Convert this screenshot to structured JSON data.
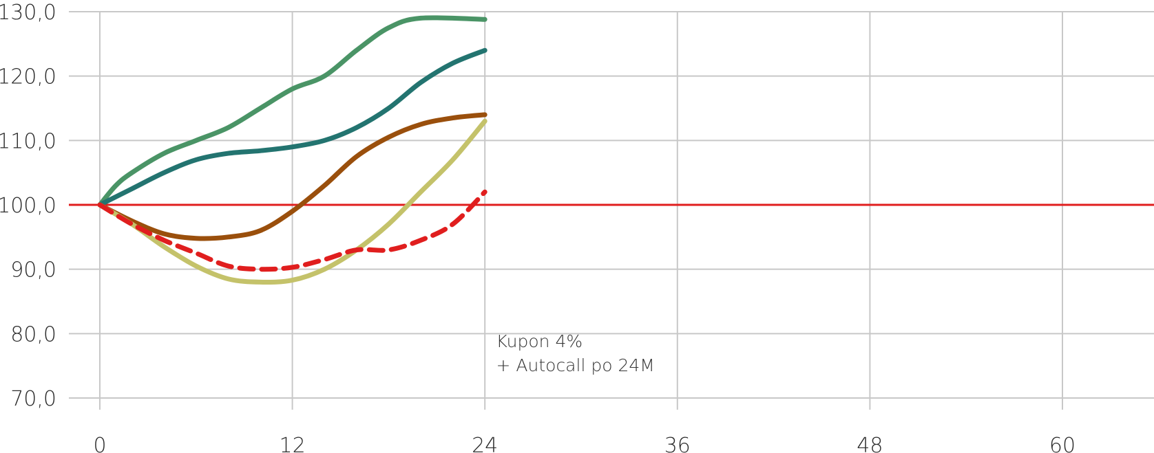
{
  "chart_data": {
    "type": "line",
    "title": "",
    "xlabel": "",
    "ylabel": "",
    "xlim": [
      0,
      66
    ],
    "ylim": [
      70,
      130
    ],
    "x_ticks": [
      0,
      12,
      24,
      36,
      48,
      60
    ],
    "x_tick_labels": [
      "0",
      "12",
      "24",
      "36",
      "48",
      "60"
    ],
    "y_ticks": [
      70,
      80,
      90,
      100,
      110,
      120,
      130
    ],
    "y_tick_labels": [
      "70,0",
      "80,0",
      "90,0",
      "100,0",
      "110,0",
      "120,0",
      "130,0"
    ],
    "grid": true,
    "legend": "none",
    "reference_line": {
      "y": 100,
      "color": "#e01e1e"
    },
    "annotation": {
      "x": 24.7,
      "y": 78,
      "lines": [
        "Kupon 4%",
        "+ Autocall po 24M"
      ]
    },
    "series": [
      {
        "color": "#4a9466",
        "dash": false,
        "x": [
          0,
          1,
          2,
          4,
          6,
          8,
          10,
          12,
          14,
          16,
          18,
          20,
          24
        ],
        "y": [
          100,
          103,
          105,
          108,
          110,
          112,
          115,
          118,
          120,
          124,
          127.5,
          129,
          128.8
        ]
      },
      {
        "color": "#237470",
        "dash": false,
        "x": [
          0,
          2,
          4,
          6,
          8,
          10,
          12,
          14,
          16,
          18,
          20,
          22,
          24
        ],
        "y": [
          100,
          102.5,
          105,
          107,
          108,
          108.4,
          109,
          110,
          112,
          115,
          119,
          122,
          124
        ]
      },
      {
        "color": "#9a4f0c",
        "dash": false,
        "x": [
          0,
          2,
          4,
          6,
          8,
          10,
          12,
          14,
          16,
          18,
          20,
          22,
          24
        ],
        "y": [
          100,
          97.5,
          95.5,
          94.8,
          95,
          96,
          99,
          103,
          107.5,
          110.5,
          112.5,
          113.5,
          114
        ]
      },
      {
        "color": "#c4c26a",
        "dash": false,
        "x": [
          0,
          2,
          4,
          6,
          8,
          10,
          12,
          14,
          16,
          18,
          20,
          22,
          24
        ],
        "y": [
          100,
          97,
          93.5,
          90.5,
          88.5,
          88,
          88.3,
          90,
          93,
          97,
          102,
          107,
          113
        ]
      },
      {
        "color": "#e01e1e",
        "dash": true,
        "x": [
          0,
          2,
          4,
          6,
          8,
          10,
          12,
          14,
          16,
          18,
          20,
          22,
          24
        ],
        "y": [
          100,
          97,
          94.5,
          92.5,
          90.5,
          90,
          90.3,
          91.5,
          93,
          93,
          94.5,
          97,
          102
        ]
      }
    ]
  }
}
